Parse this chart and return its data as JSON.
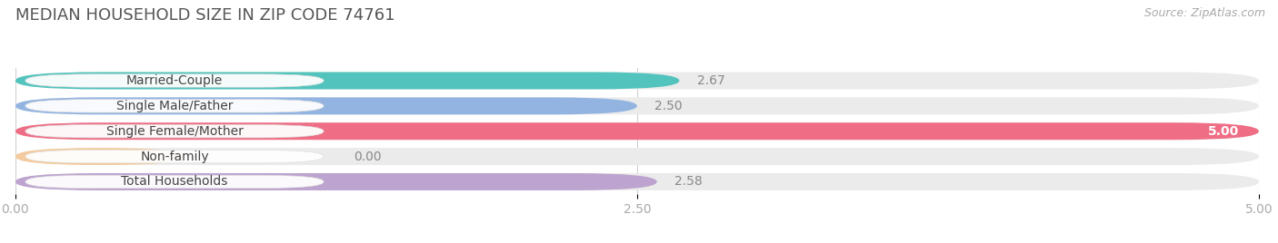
{
  "title": "MEDIAN HOUSEHOLD SIZE IN ZIP CODE 74761",
  "source": "Source: ZipAtlas.com",
  "categories": [
    "Married-Couple",
    "Single Male/Father",
    "Single Female/Mother",
    "Non-family",
    "Total Households"
  ],
  "values": [
    2.67,
    2.5,
    5.0,
    0.0,
    2.58
  ],
  "bar_colors": [
    "#41c0b8",
    "#8aaee0",
    "#f0607a",
    "#f5c896",
    "#b89ccc"
  ],
  "background_color": "#ffffff",
  "bar_bg_color": "#ebebeb",
  "xlim": [
    0,
    5.0
  ],
  "xticks": [
    0.0,
    2.5,
    5.0
  ],
  "xtick_labels": [
    "0.00",
    "2.50",
    "5.00"
  ],
  "title_fontsize": 13,
  "source_fontsize": 9,
  "label_fontsize": 10,
  "value_fontsize": 10,
  "bar_height": 0.68,
  "bar_gap": 0.32
}
